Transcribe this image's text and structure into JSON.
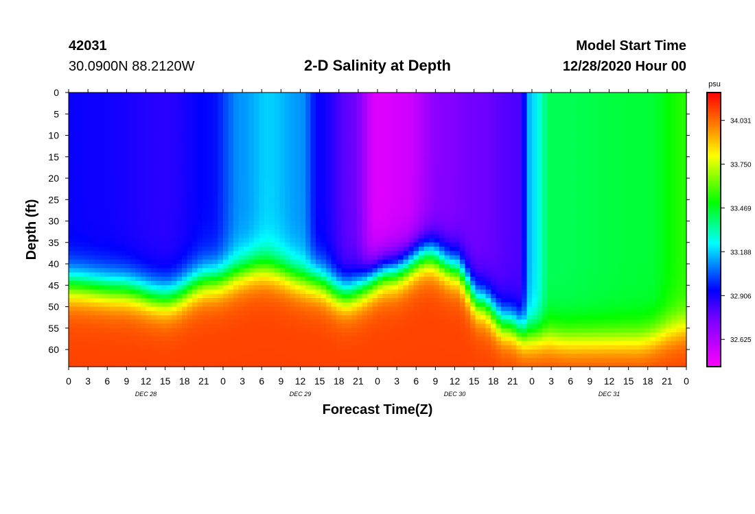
{
  "header": {
    "station_id": "42031",
    "coordinates": "30.0900N 88.2120W",
    "title": "2-D Salinity at Depth",
    "start_label": "Model Start Time",
    "start_value": "12/28/2020 Hour 00"
  },
  "chart_data": {
    "type": "heatmap",
    "title": "2-D Salinity at Depth",
    "xlabel": "Forecast Time(Z)",
    "ylabel": "Depth (ft)",
    "x_ticks": [
      "0",
      "3",
      "6",
      "9",
      "12",
      "15",
      "18",
      "21",
      "0",
      "3",
      "6",
      "9",
      "12",
      "15",
      "18",
      "21",
      "0",
      "3",
      "6",
      "9",
      "12",
      "15",
      "18",
      "21",
      "0",
      "3",
      "6",
      "9",
      "12",
      "15",
      "18",
      "21",
      "0"
    ],
    "x_day_labels": [
      {
        "label": "DEC 28",
        "hour": 12
      },
      {
        "label": "DEC 29",
        "hour": 36
      },
      {
        "label": "DEC 30",
        "hour": 60
      },
      {
        "label": "DEC 31",
        "hour": 84
      }
    ],
    "xlim_hours": [
      0,
      96
    ],
    "y_ticks": [
      0,
      5,
      10,
      15,
      20,
      25,
      30,
      35,
      40,
      45,
      50,
      55,
      60
    ],
    "ylim_ft": [
      0,
      64
    ],
    "colorbar": {
      "unit": "psu",
      "range": [
        32.45,
        34.21
      ],
      "tick_values": [
        32.625,
        32.906,
        33.188,
        33.469,
        33.75,
        34.031
      ],
      "tick_labels": [
        "32.625",
        "32.906",
        "33.188",
        "33.469",
        "33.750",
        "34.031"
      ]
    },
    "surface_salinity_psu": [
      {
        "hour": 0,
        "value": 32.93
      },
      {
        "hour": 5,
        "value": 32.92
      },
      {
        "hour": 15,
        "value": 32.88
      },
      {
        "hour": 22,
        "value": 32.95
      },
      {
        "hour": 27,
        "value": 33.12
      },
      {
        "hour": 31,
        "value": 33.19
      },
      {
        "hour": 36,
        "value": 33.12
      },
      {
        "hour": 39,
        "value": 32.93
      },
      {
        "hour": 44,
        "value": 32.78
      },
      {
        "hour": 48,
        "value": 32.52
      },
      {
        "hour": 52,
        "value": 32.55
      },
      {
        "hour": 58,
        "value": 32.72
      },
      {
        "hour": 63,
        "value": 32.76
      },
      {
        "hour": 70,
        "value": 32.82
      },
      {
        "hour": 72,
        "value": 33.2
      },
      {
        "hour": 75,
        "value": 33.42
      },
      {
        "hour": 90,
        "value": 33.45
      },
      {
        "hour": 96,
        "value": 33.55
      }
    ],
    "halocline_depth_ft": [
      {
        "hour": 0,
        "value": 45
      },
      {
        "hour": 8,
        "value": 46
      },
      {
        "hour": 15,
        "value": 48
      },
      {
        "hour": 22,
        "value": 44
      },
      {
        "hour": 30,
        "value": 41
      },
      {
        "hour": 38,
        "value": 44
      },
      {
        "hour": 43,
        "value": 47
      },
      {
        "hour": 50,
        "value": 42
      },
      {
        "hour": 56,
        "value": 38
      },
      {
        "hour": 60,
        "value": 41
      },
      {
        "hour": 64,
        "value": 49
      },
      {
        "hour": 68,
        "value": 54
      },
      {
        "hour": 72,
        "value": 57
      },
      {
        "hour": 78,
        "value": 58
      },
      {
        "hour": 88,
        "value": 58
      },
      {
        "hour": 96,
        "value": 55
      }
    ],
    "bottom_salinity_psu": 34.1
  }
}
